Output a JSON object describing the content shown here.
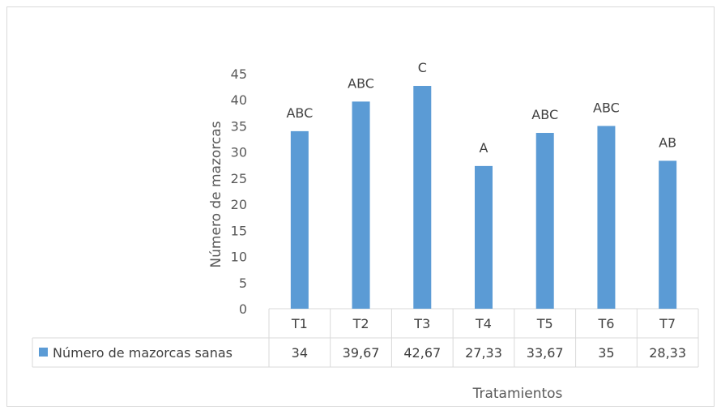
{
  "chart_data": {
    "type": "bar",
    "categories": [
      "T1",
      "T2",
      "T3",
      "T4",
      "T5",
      "T6",
      "T7"
    ],
    "series": [
      {
        "name": "Número de mazorcas sanas",
        "values": [
          34,
          39.67,
          42.67,
          27.33,
          33.67,
          35,
          28.33
        ],
        "value_labels": [
          "34",
          "39,67",
          "42,67",
          "27,33",
          "33,67",
          "35",
          "28,33"
        ],
        "significance_letters": [
          "ABC",
          "ABC",
          "C",
          "A",
          "ABC",
          "ABC",
          "AB"
        ],
        "color": "#5b9bd5"
      }
    ],
    "title": "",
    "xlabel": "Tratamientos",
    "ylabel": "Número de mazorcas",
    "ylim": [
      0,
      45
    ],
    "yticks": [
      "0",
      "5",
      "10",
      "15",
      "20",
      "25",
      "30",
      "35",
      "40",
      "45"
    ],
    "grid": false,
    "legend": "data-table-left",
    "data_table": true
  }
}
